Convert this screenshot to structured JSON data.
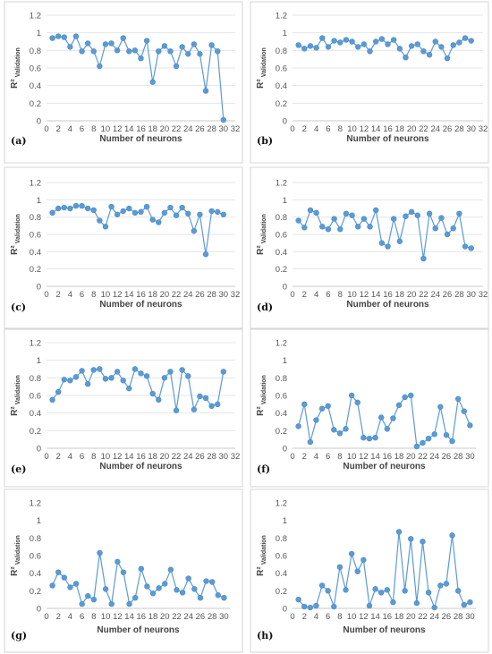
{
  "figure": {
    "background": "#ffffff",
    "frame_color": "#d4d4d4"
  },
  "chart_data": [
    {
      "panel": "(a)",
      "type": "line",
      "xlabel": "Number of neurons",
      "ylabel": "R²",
      "ylabel_sub": "Validation",
      "xlim": [
        0,
        32
      ],
      "ylim": [
        0,
        1.2
      ],
      "xticks": [
        0,
        2,
        4,
        6,
        8,
        10,
        12,
        14,
        16,
        18,
        20,
        22,
        24,
        26,
        28,
        30,
        32
      ],
      "yticks": [
        0,
        0.2,
        0.4,
        0.6,
        0.8,
        1,
        1.2
      ],
      "grid": true,
      "color": "#5b9bd5",
      "marker": "circle",
      "x": [
        1,
        2,
        3,
        4,
        5,
        6,
        7,
        8,
        9,
        10,
        11,
        12,
        13,
        14,
        15,
        16,
        17,
        18,
        19,
        20,
        21,
        22,
        23,
        24,
        25,
        26,
        27,
        28,
        29,
        30
      ],
      "values": [
        0.94,
        0.96,
        0.95,
        0.84,
        0.96,
        0.79,
        0.88,
        0.79,
        0.62,
        0.87,
        0.88,
        0.8,
        0.94,
        0.79,
        0.8,
        0.71,
        0.91,
        0.44,
        0.79,
        0.85,
        0.79,
        0.62,
        0.84,
        0.76,
        0.87,
        0.76,
        0.34,
        0.86,
        0.79,
        0.01
      ]
    },
    {
      "panel": "(b)",
      "type": "line",
      "xlabel": "Number of neurons",
      "ylabel": "R²",
      "ylabel_sub": "Validation",
      "xlim": [
        0,
        32
      ],
      "ylim": [
        0,
        1.2
      ],
      "xticks": [
        0,
        2,
        4,
        6,
        8,
        10,
        12,
        14,
        16,
        18,
        20,
        22,
        24,
        26,
        28,
        30,
        32
      ],
      "yticks": [
        0,
        0.2,
        0.4,
        0.6,
        0.8,
        1,
        1.2
      ],
      "grid": true,
      "color": "#5b9bd5",
      "marker": "circle",
      "x": [
        1,
        2,
        3,
        4,
        5,
        6,
        7,
        8,
        9,
        10,
        11,
        12,
        13,
        14,
        15,
        16,
        17,
        18,
        19,
        20,
        21,
        22,
        23,
        24,
        25,
        26,
        27,
        28,
        29,
        30
      ],
      "values": [
        0.86,
        0.82,
        0.85,
        0.83,
        0.94,
        0.84,
        0.91,
        0.89,
        0.92,
        0.9,
        0.84,
        0.87,
        0.79,
        0.9,
        0.93,
        0.87,
        0.92,
        0.82,
        0.72,
        0.85,
        0.87,
        0.79,
        0.75,
        0.9,
        0.84,
        0.71,
        0.86,
        0.89,
        0.94,
        0.91
      ]
    },
    {
      "panel": "(c)",
      "type": "line",
      "xlabel": "Number of neurons",
      "ylabel": "R²",
      "ylabel_sub": "Validation",
      "xlim": [
        0,
        32
      ],
      "ylim": [
        0,
        1.2
      ],
      "xticks": [
        0,
        2,
        4,
        6,
        8,
        10,
        12,
        14,
        16,
        18,
        20,
        22,
        24,
        26,
        28,
        30,
        32
      ],
      "yticks": [
        0,
        0.2,
        0.4,
        0.6,
        0.8,
        1,
        1.2
      ],
      "grid": true,
      "color": "#5b9bd5",
      "marker": "circle",
      "x": [
        1,
        2,
        3,
        4,
        5,
        6,
        7,
        8,
        9,
        10,
        11,
        12,
        13,
        14,
        15,
        16,
        17,
        18,
        19,
        20,
        21,
        22,
        23,
        24,
        25,
        26,
        27,
        28,
        29,
        30
      ],
      "values": [
        0.85,
        0.9,
        0.91,
        0.9,
        0.93,
        0.93,
        0.9,
        0.88,
        0.76,
        0.69,
        0.92,
        0.83,
        0.87,
        0.9,
        0.85,
        0.86,
        0.92,
        0.77,
        0.74,
        0.85,
        0.91,
        0.82,
        0.91,
        0.84,
        0.64,
        0.83,
        0.37,
        0.87,
        0.86,
        0.83
      ]
    },
    {
      "panel": "(d)",
      "type": "line",
      "xlabel": "Number of neurons",
      "ylabel": "R²",
      "ylabel_sub": "Validation",
      "xlim": [
        0,
        32
      ],
      "ylim": [
        0,
        1.2
      ],
      "xticks": [
        0,
        2,
        4,
        6,
        8,
        10,
        12,
        14,
        16,
        18,
        20,
        22,
        24,
        26,
        28,
        30,
        32
      ],
      "yticks": [
        0,
        0.2,
        0.4,
        0.6,
        0.8,
        1,
        1.2
      ],
      "grid": true,
      "color": "#5b9bd5",
      "marker": "circle",
      "x": [
        1,
        2,
        3,
        4,
        5,
        6,
        7,
        8,
        9,
        10,
        11,
        12,
        13,
        14,
        15,
        16,
        17,
        18,
        19,
        20,
        21,
        22,
        23,
        24,
        25,
        26,
        27,
        28,
        29,
        30
      ],
      "values": [
        0.76,
        0.68,
        0.88,
        0.85,
        0.69,
        0.66,
        0.78,
        0.66,
        0.84,
        0.82,
        0.69,
        0.78,
        0.69,
        0.88,
        0.5,
        0.46,
        0.78,
        0.52,
        0.81,
        0.86,
        0.82,
        0.32,
        0.84,
        0.67,
        0.79,
        0.6,
        0.67,
        0.84,
        0.46,
        0.44
      ]
    },
    {
      "panel": "(e)",
      "type": "line",
      "xlabel": "Number of neurons",
      "ylabel": "R²",
      "ylabel_sub": "Validation",
      "xlim": [
        0,
        32
      ],
      "ylim": [
        0,
        1.2
      ],
      "xticks": [
        0,
        2,
        4,
        6,
        8,
        10,
        12,
        14,
        16,
        18,
        20,
        22,
        24,
        26,
        28,
        30,
        32
      ],
      "yticks": [
        0,
        0.2,
        0.4,
        0.6,
        0.8,
        1,
        1.2
      ],
      "grid": true,
      "color": "#5b9bd5",
      "marker": "circle",
      "x": [
        1,
        2,
        3,
        4,
        5,
        6,
        7,
        8,
        9,
        10,
        11,
        12,
        13,
        14,
        15,
        16,
        17,
        18,
        19,
        20,
        21,
        22,
        23,
        24,
        25,
        26,
        27,
        28,
        29,
        30
      ],
      "values": [
        0.55,
        0.64,
        0.78,
        0.77,
        0.81,
        0.88,
        0.73,
        0.89,
        0.9,
        0.79,
        0.8,
        0.87,
        0.77,
        0.68,
        0.9,
        0.85,
        0.82,
        0.62,
        0.55,
        0.8,
        0.87,
        0.43,
        0.89,
        0.82,
        0.44,
        0.59,
        0.57,
        0.48,
        0.5,
        0.87
      ]
    },
    {
      "panel": "(f)",
      "type": "line",
      "xlabel": "Number of neurons",
      "ylabel": "R²",
      "ylabel_sub": "Validation",
      "xlim": [
        0,
        31
      ],
      "ylim": [
        0,
        1.2
      ],
      "xticks": [
        0,
        2,
        4,
        6,
        8,
        10,
        12,
        14,
        16,
        18,
        20,
        22,
        24,
        26,
        28,
        30
      ],
      "yticks": [
        0,
        0.2,
        0.4,
        0.6,
        0.8,
        1,
        1.2
      ],
      "grid": false,
      "color": "#5b9bd5",
      "marker": "circle",
      "x": [
        1,
        2,
        3,
        4,
        5,
        6,
        7,
        8,
        9,
        10,
        11,
        12,
        13,
        14,
        15,
        16,
        17,
        18,
        19,
        20,
        21,
        22,
        23,
        24,
        25,
        26,
        27,
        28,
        29,
        30
      ],
      "values": [
        0.25,
        0.5,
        0.07,
        0.32,
        0.45,
        0.48,
        0.21,
        0.17,
        0.22,
        0.6,
        0.52,
        0.12,
        0.11,
        0.12,
        0.35,
        0.22,
        0.34,
        0.49,
        0.58,
        0.6,
        0.02,
        0.06,
        0.11,
        0.16,
        0.47,
        0.15,
        0.08,
        0.56,
        0.42,
        0.26
      ]
    },
    {
      "panel": "(g)",
      "type": "line",
      "xlabel": "Number of neurons",
      "ylabel": "R²",
      "ylabel_sub": "Validation",
      "xlim": [
        0,
        31
      ],
      "ylim": [
        0,
        1.2
      ],
      "xticks": [
        0,
        2,
        4,
        6,
        8,
        10,
        12,
        14,
        16,
        18,
        20,
        22,
        24,
        26,
        28,
        30
      ],
      "yticks": [
        0,
        0.2,
        0.4,
        0.6,
        0.8,
        1,
        1.2
      ],
      "grid": false,
      "color": "#5b9bd5",
      "marker": "circle",
      "x": [
        1,
        2,
        3,
        4,
        5,
        6,
        7,
        8,
        9,
        10,
        11,
        12,
        13,
        14,
        15,
        16,
        17,
        18,
        19,
        20,
        21,
        22,
        23,
        24,
        25,
        26,
        27,
        28,
        29,
        30
      ],
      "values": [
        0.26,
        0.41,
        0.35,
        0.24,
        0.28,
        0.05,
        0.14,
        0.1,
        0.63,
        0.22,
        0.05,
        0.53,
        0.41,
        0.05,
        0.12,
        0.45,
        0.25,
        0.17,
        0.23,
        0.28,
        0.44,
        0.21,
        0.18,
        0.34,
        0.22,
        0.12,
        0.31,
        0.3,
        0.15,
        0.12
      ]
    },
    {
      "panel": "(h)",
      "type": "line",
      "xlabel": "Number of neurons",
      "ylabel": "R²",
      "ylabel_sub": "Validation",
      "xlim": [
        0,
        31
      ],
      "ylim": [
        0,
        1.2
      ],
      "xticks": [
        0,
        2,
        4,
        6,
        8,
        10,
        12,
        14,
        16,
        18,
        20,
        22,
        24,
        26,
        28,
        30
      ],
      "yticks": [
        0,
        0.2,
        0.4,
        0.6,
        0.8,
        1,
        1.2
      ],
      "grid": false,
      "color": "#5b9bd5",
      "marker": "circle",
      "x": [
        1,
        2,
        3,
        4,
        5,
        6,
        7,
        8,
        9,
        10,
        11,
        12,
        13,
        14,
        15,
        16,
        17,
        18,
        19,
        20,
        21,
        22,
        23,
        24,
        25,
        26,
        27,
        28,
        29,
        30
      ],
      "values": [
        0.1,
        0.02,
        0.01,
        0.03,
        0.26,
        0.2,
        0.02,
        0.47,
        0.21,
        0.62,
        0.42,
        0.55,
        0.03,
        0.22,
        0.18,
        0.21,
        0.07,
        0.87,
        0.2,
        0.79,
        0.06,
        0.76,
        0.18,
        0.01,
        0.26,
        0.28,
        0.83,
        0.2,
        0.04,
        0.07
      ]
    }
  ]
}
